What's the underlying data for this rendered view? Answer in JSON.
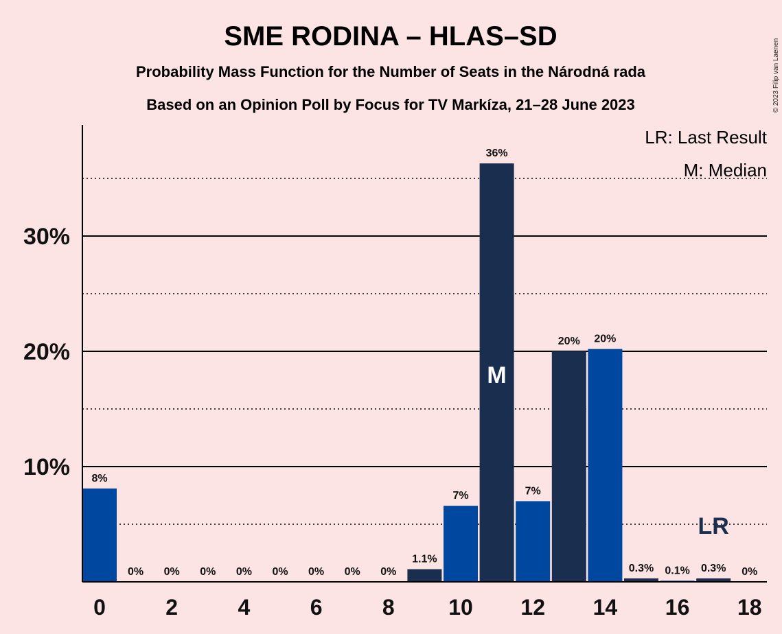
{
  "title": "SME RODINA – HLAS–SD",
  "subtitle_1": "Probability Mass Function for the Number of Seats in the Národná rada",
  "subtitle_2": "Based on an Opinion Poll by Focus for TV Markíza, 21–28 June 2023",
  "copyright": "© 2023 Filip van Laenen",
  "legend": {
    "last_result": "LR: Last Result",
    "median": "M: Median"
  },
  "colors": {
    "background": "#fde4e4",
    "bar_dark": "#1a2e50",
    "bar_blue": "#0047a0",
    "axis": "#000000"
  },
  "chart_data": {
    "type": "bar",
    "title": "SME RODINA – HLAS–SD",
    "x": [
      0,
      1,
      2,
      3,
      4,
      5,
      6,
      7,
      8,
      9,
      10,
      11,
      12,
      13,
      14,
      15,
      16,
      17,
      18
    ],
    "values": [
      8.1,
      0,
      0,
      0,
      0,
      0,
      0,
      0,
      0,
      1.1,
      6.6,
      36.3,
      7.0,
      20.0,
      20.2,
      0.3,
      0.1,
      0.3,
      0
    ],
    "value_labels": [
      "8%",
      "0%",
      "0%",
      "0%",
      "0%",
      "0%",
      "0%",
      "0%",
      "0%",
      "1.1%",
      "7%",
      "36%",
      "7%",
      "20%",
      "20%",
      "0.3%",
      "0.1%",
      "0.3%",
      "0%"
    ],
    "bar_colors": [
      "#0047a0",
      "#0047a0",
      "#0047a0",
      "#0047a0",
      "#0047a0",
      "#0047a0",
      "#0047a0",
      "#0047a0",
      "#0047a0",
      "#1a2e50",
      "#0047a0",
      "#1a2e50",
      "#0047a0",
      "#1a2e50",
      "#0047a0",
      "#1a2e50",
      "#0047a0",
      "#1a2e50",
      "#0047a0"
    ],
    "x_ticks": [
      "0",
      "2",
      "4",
      "6",
      "8",
      "10",
      "12",
      "14",
      "16",
      "18"
    ],
    "y_ticks": [
      {
        "value": 10,
        "label": "10%"
      },
      {
        "value": 20,
        "label": "20%"
      },
      {
        "value": 30,
        "label": "30%"
      }
    ],
    "y_minor_gridlines": [
      5,
      15,
      25,
      35
    ],
    "ylim": [
      0,
      39.5
    ],
    "median": {
      "x": 11,
      "label": "M"
    },
    "last_result": {
      "x": 17,
      "label": "LR"
    },
    "grid": true,
    "legend_position": "top-right"
  }
}
